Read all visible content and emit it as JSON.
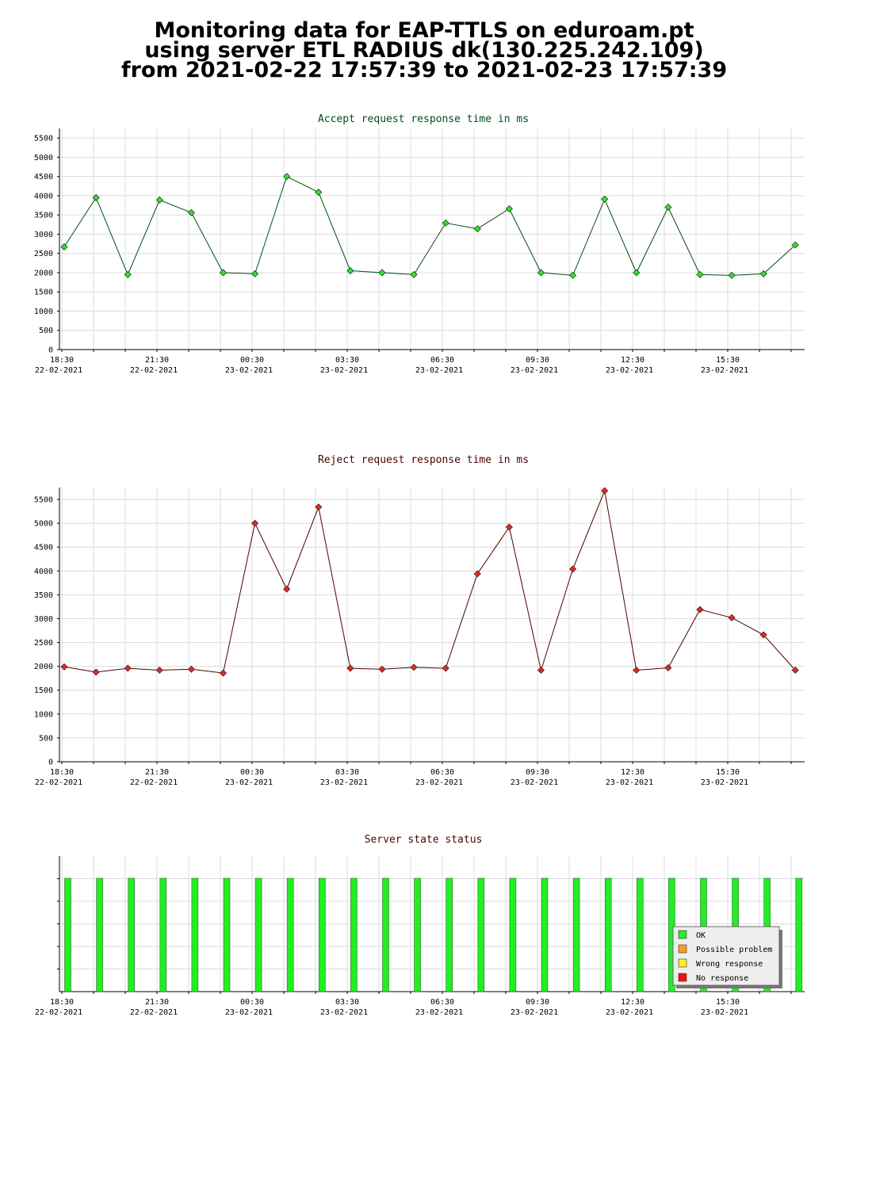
{
  "header": {
    "line1": "Monitoring data for EAP-TTLS on eduroam.pt",
    "line2": "using server ETL RADIUS dk(130.225.242.109)",
    "line3": "from 2021-02-22 17:57:39 to 2021-02-23 17:57:39"
  },
  "x_ticks": [
    {
      "time": "18:30",
      "date": "22-02-2021"
    },
    {
      "time": "21:30",
      "date": "22-02-2021"
    },
    {
      "time": "00:30",
      "date": "23-02-2021"
    },
    {
      "time": "03:30",
      "date": "23-02-2021"
    },
    {
      "time": "06:30",
      "date": "23-02-2021"
    },
    {
      "time": "09:30",
      "date": "23-02-2021"
    },
    {
      "time": "12:30",
      "date": "23-02-2021"
    },
    {
      "time": "15:30",
      "date": "23-02-2021"
    }
  ],
  "chart_data": [
    {
      "type": "line",
      "title": "Accept request response time in ms",
      "title_color": "#004d1a",
      "line_color": "#004d1a",
      "marker_color": "#22ee22",
      "yticks": [
        0,
        500,
        1000,
        1500,
        2000,
        2500,
        3000,
        3500,
        4000,
        4500,
        5000,
        5500
      ],
      "ylim": [
        0,
        5750
      ],
      "values": [
        2670,
        3950,
        1950,
        3890,
        3560,
        2000,
        1970,
        4500,
        4090,
        2050,
        2000,
        1950,
        3290,
        3140,
        3660,
        2000,
        1930,
        3910,
        2000,
        3700,
        1950,
        1930,
        1970,
        2720
      ]
    },
    {
      "type": "line",
      "title": "Reject request response time in ms",
      "title_color": "#4d0000",
      "line_color": "#4d0000",
      "marker_color": "#ee2222",
      "yticks": [
        0,
        500,
        1000,
        1500,
        2000,
        2500,
        3000,
        3500,
        4000,
        4500,
        5000,
        5500
      ],
      "ylim": [
        0,
        5750
      ],
      "values": [
        1990,
        1880,
        1960,
        1920,
        1940,
        1860,
        5000,
        3620,
        5340,
        1960,
        1940,
        1980,
        1960,
        3940,
        4920,
        1920,
        4040,
        5680,
        1920,
        1970,
        3190,
        3020,
        2660,
        1920
      ]
    },
    {
      "type": "bar",
      "title": "Server state status",
      "title_color": "#4d0000",
      "states": [
        "ok",
        "ok",
        "ok",
        "ok",
        "ok",
        "ok",
        "ok",
        "ok",
        "ok",
        "ok",
        "ok",
        "ok",
        "ok",
        "ok",
        "ok",
        "ok",
        "ok",
        "ok",
        "ok",
        "ok",
        "ok",
        "ok",
        "ok",
        "ok"
      ],
      "legend": [
        {
          "key": "ok",
          "label": "OK",
          "color": "#22ee22"
        },
        {
          "key": "possible",
          "label": "Possible problem",
          "color": "#ff9922"
        },
        {
          "key": "wrong",
          "label": "Wrong response",
          "color": "#ffee22"
        },
        {
          "key": "none",
          "label": "No response",
          "color": "#ee1111"
        }
      ],
      "legend_position": "bottom-right"
    }
  ]
}
